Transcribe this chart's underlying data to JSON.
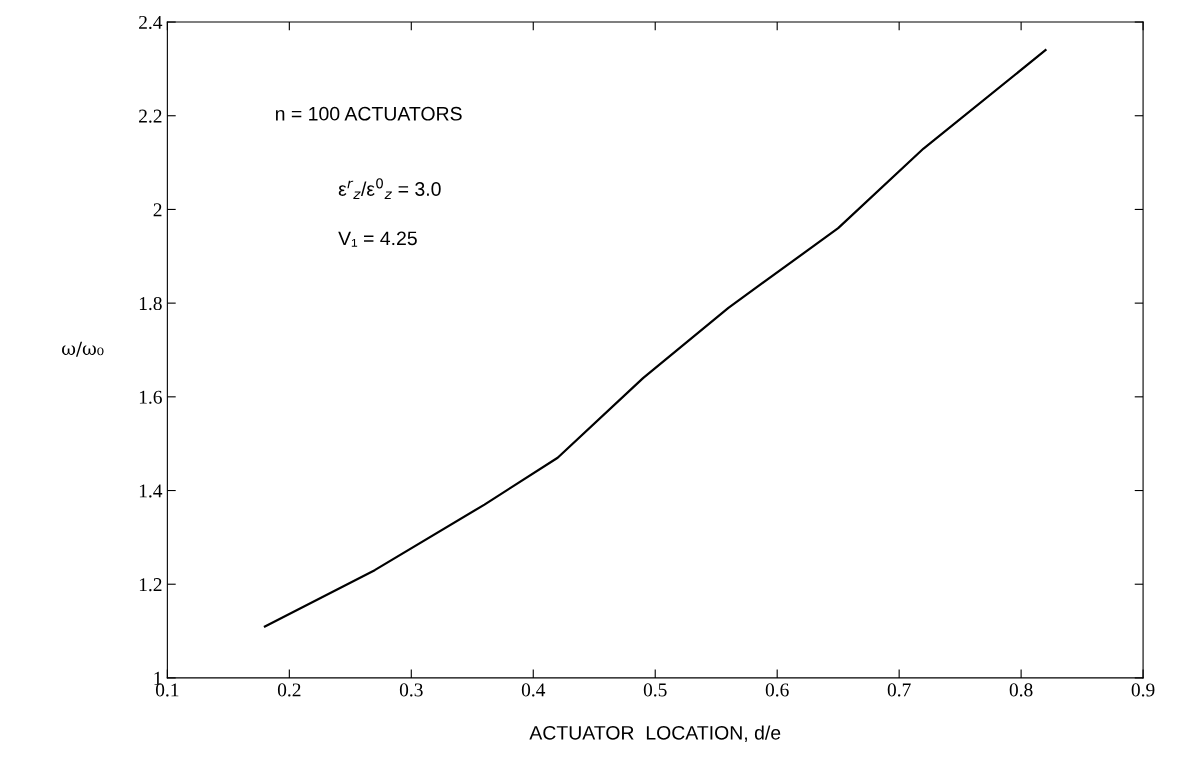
{
  "chart_data": {
    "type": "line",
    "xlabel": "ACTUATOR  LOCATION, d/e",
    "ylabel": "ω/ω₀",
    "annotations": [
      "n = 100 ACTUATORS",
      "ε$^{r}$$_{z}$/ε$^{0}$$_{z}$ = 3.0",
      "V₁ = 4.25"
    ],
    "series": [
      {
        "color": "#000000",
        "x": [
          0.18,
          0.27,
          0.36,
          0.42,
          0.49,
          0.56,
          0.65,
          0.72,
          0.82
        ],
        "values": [
          1.11,
          1.23,
          1.37,
          1.47,
          1.64,
          1.79,
          1.96,
          2.13,
          2.34
        ]
      }
    ],
    "xlim": [
      0.1,
      0.9
    ],
    "xticks": [
      0.1,
      0.2,
      0.3,
      0.4,
      0.5,
      0.6,
      0.7,
      0.8,
      0.9
    ],
    "ylim": [
      1,
      2.4
    ],
    "yticks": [
      1,
      1.2,
      1.4,
      1.6,
      1.8,
      2,
      2.2,
      2.4
    ],
    "grid": false,
    "legend": false,
    "marker": "none",
    "line_style": "solid"
  }
}
